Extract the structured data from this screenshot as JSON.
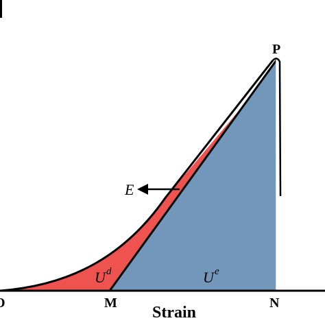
{
  "diagram": {
    "axis_label_x": "Strain",
    "points": {
      "origin": "O",
      "m": "M",
      "n": "N",
      "p": "P"
    },
    "regions": {
      "dissipated": {
        "symbol": "U",
        "superscript": "d"
      },
      "elastic": {
        "symbol": "U",
        "superscript": "e"
      }
    },
    "slope_label": "E",
    "colors": {
      "dissipated_fill": "#ef5350",
      "elastic_fill": "#7397bb",
      "line": "#000000"
    }
  }
}
